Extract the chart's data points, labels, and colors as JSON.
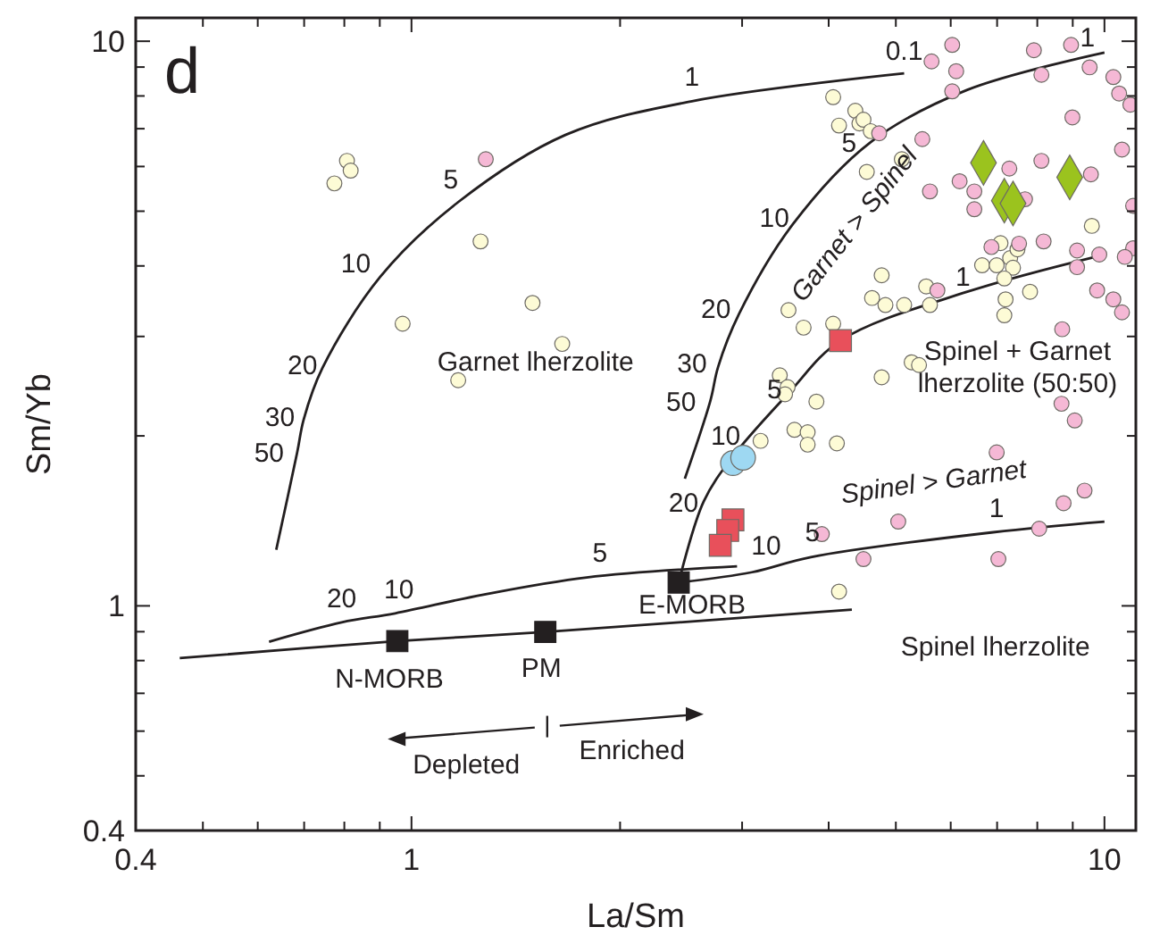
{
  "chart_data": {
    "type": "scatter",
    "title": "d",
    "xlabel": "La/Sm",
    "ylabel": "Sm/Yb",
    "log": "xy",
    "xlim": [
      0.4,
      11.1
    ],
    "ylim": [
      0.4,
      11
    ],
    "xticks": [
      0.4,
      {
        "value": 0.5,
        "label": null
      },
      {
        "value": 0.6,
        "label": null
      },
      {
        "value": 0.7,
        "label": null
      },
      {
        "value": 0.8,
        "label": null
      },
      {
        "value": 0.9,
        "label": null
      },
      1,
      {
        "value": 2,
        "label": null
      },
      {
        "value": 3,
        "label": null
      },
      {
        "value": 4,
        "label": null
      },
      {
        "value": 5,
        "label": null
      },
      {
        "value": 6,
        "label": null
      },
      {
        "value": 7,
        "label": null
      },
      {
        "value": 8,
        "label": null
      },
      {
        "value": 9,
        "label": null
      },
      10
    ],
    "yticks": [
      0.4,
      {
        "value": 0.5,
        "label": null
      },
      {
        "value": 0.6,
        "label": null
      },
      {
        "value": 0.7,
        "label": null
      },
      {
        "value": 0.8,
        "label": null
      },
      {
        "value": 0.9,
        "label": null
      },
      1,
      {
        "value": 2,
        "label": null
      },
      {
        "value": 3,
        "label": null
      },
      {
        "value": 4,
        "label": null
      },
      {
        "value": 5,
        "label": null
      },
      {
        "value": 6,
        "label": null
      },
      {
        "value": 7,
        "label": null
      },
      {
        "value": 8,
        "label": null
      },
      {
        "value": 9,
        "label": null
      },
      10
    ],
    "series": [
      {
        "type": "line",
        "color": "#231f20",
        "marker": "none",
        "x": [
          0.638,
          0.684,
          0.699,
          0.744,
          0.902,
          1.168,
          1.67,
          2.54,
          5.14
        ],
        "values": [
          1.257,
          1.87,
          2.14,
          2.64,
          3.83,
          5.19,
          6.83,
          7.83,
          8.77
        ]
      },
      {
        "type": "line",
        "color": "#231f20",
        "marker": "none",
        "x": [
          2.48,
          2.7,
          2.77,
          2.97,
          3.55,
          4.6,
          6.34,
          10.0
        ],
        "values": [
          1.68,
          2.31,
          2.65,
          3.29,
          4.74,
          6.63,
          8.2,
          9.55
        ]
      },
      {
        "type": "line",
        "color": "#231f20",
        "marker": "none",
        "x": [
          2.43,
          2.64,
          2.91,
          3.5,
          4.16,
          6.34,
          10.0
        ],
        "values": [
          1.1,
          1.53,
          1.84,
          2.38,
          2.95,
          3.6,
          4.19
        ]
      },
      {
        "type": "line",
        "color": "#231f20",
        "marker": "none",
        "x": [
          0.623,
          0.793,
          0.947,
          1.27,
          1.79,
          2.95
        ],
        "values": [
          0.864,
          0.935,
          0.97,
          1.047,
          1.123,
          1.175
        ]
      },
      {
        "type": "line",
        "color": "#231f20",
        "marker": "none",
        "x": [
          2.43,
          3.1,
          3.77,
          6.91,
          10.0
        ],
        "values": [
          1.1,
          1.147,
          1.22,
          1.35,
          1.41
        ]
      },
      {
        "type": "line",
        "color": "#231f20",
        "marker": "none",
        "x": [
          0.463,
          0.954,
          1.56,
          4.32
        ],
        "values": [
          0.808,
          0.866,
          0.899,
          0.985
        ]
      },
      {
        "type": "scatter",
        "color": "#fdfbd6",
        "marker": "circle",
        "x": [
          0.774,
          0.807,
          0.817,
          0.971,
          1.168,
          1.258,
          1.495,
          1.65,
          4.06,
          4.14,
          4.37,
          4.43,
          4.49,
          4.6,
          4.54,
          5.1,
          3.5,
          3.68,
          4.06,
          3.4,
          3.49,
          3.46,
          3.57,
          3.73,
          3.73,
          3.84,
          4.11,
          3.19,
          4.14,
          4.77,
          4.62,
          4.83,
          5.14,
          5.53,
          5.6,
          5.27,
          5.4,
          4.77,
          6.66,
          6.99,
          7.08,
          7.31,
          7.38,
          7.17,
          7.2,
          7.17,
          7.81,
          9.59,
          7.49
        ],
        "values": [
          5.6,
          6.14,
          5.9,
          3.16,
          2.51,
          4.42,
          3.44,
          2.91,
          7.96,
          7.09,
          7.53,
          7.15,
          7.26,
          6.93,
          5.87,
          6.18,
          3.34,
          3.11,
          3.16,
          2.56,
          2.44,
          2.37,
          2.05,
          2.03,
          1.93,
          2.3,
          1.94,
          1.96,
          1.06,
          3.85,
          3.51,
          3.41,
          3.41,
          3.68,
          3.41,
          2.7,
          2.67,
          2.54,
          4.01,
          4.01,
          4.39,
          4.13,
          3.97,
          3.8,
          3.49,
          3.27,
          3.6,
          4.71,
          4.28
        ]
      },
      {
        "type": "scatter",
        "color": "#f5b8d5",
        "marker": "circle",
        "x": [
          1.28,
          4.73,
          5.63,
          6.03,
          6.11,
          6.03,
          5.46,
          5.6,
          6.18,
          6.49,
          6.49,
          7.29,
          7.68,
          7.53,
          6.87,
          8.11,
          7.91,
          8.11,
          8.95,
          8.99,
          9.52,
          9.56,
          10.3,
          10.5,
          10.6,
          10.9,
          11.0,
          8.17,
          9.13,
          9.13,
          9.83,
          9.76,
          10.3,
          10.6,
          11.0,
          10.7,
          8.69,
          8.67,
          9.06,
          5.74,
          6.99,
          9.36,
          8.73,
          5.04,
          4.49,
          3.91,
          7.03,
          8.05
        ],
        "values": [
          6.18,
          6.87,
          9.21,
          9.85,
          8.85,
          8.15,
          6.71,
          5.42,
          5.65,
          5.42,
          5.04,
          5.95,
          5.25,
          4.38,
          4.32,
          6.14,
          9.64,
          8.72,
          9.85,
          7.33,
          8.99,
          5.81,
          8.64,
          8.08,
          6.43,
          7.72,
          5.11,
          4.42,
          4.26,
          3.98,
          4.19,
          3.62,
          3.49,
          3.31,
          4.3,
          4.15,
          3.09,
          2.28,
          2.13,
          3.62,
          1.87,
          1.6,
          1.52,
          1.41,
          1.21,
          1.34,
          1.21,
          1.37
        ]
      },
      {
        "type": "scatter",
        "color": "#9bc31e",
        "marker": "diamond",
        "x": [
          6.69,
          7.17,
          7.38,
          8.91
        ],
        "values": [
          6.09,
          5.22,
          5.16,
          5.74
        ]
      },
      {
        "type": "scatter",
        "color": "#9ed8f2",
        "marker": "circle",
        "x": [
          2.91,
          3.01
        ],
        "values": [
          1.79,
          1.83
        ]
      },
      {
        "type": "scatter",
        "color": "#e8505b",
        "marker": "square",
        "x": [
          4.16,
          2.91,
          2.86,
          2.79
        ],
        "values": [
          2.95,
          1.42,
          1.36,
          1.28
        ]
      },
      {
        "type": "scatter",
        "color": "#231f20",
        "marker": "square",
        "x": [
          0.954,
          1.56,
          2.43
        ],
        "values": [
          0.866,
          0.899,
          1.1
        ]
      }
    ],
    "annotations": [
      "1",
      "0.1",
      "5",
      "10",
      "20",
      "30",
      "50",
      "Garnet lherzolite",
      "5",
      "10",
      "20",
      "30",
      "50",
      "1",
      "Garnet > Spinel",
      "20",
      "10",
      "5",
      "1",
      "Spinel + Garnet\nlherzolite (50:50)",
      "20",
      "10",
      "5",
      "10",
      "5",
      "1",
      "Spinel > Garnet",
      "Spinel lherzolite",
      "N-MORB",
      "PM",
      "E-MORB",
      "Depleted",
      "Enriched"
    ]
  }
}
